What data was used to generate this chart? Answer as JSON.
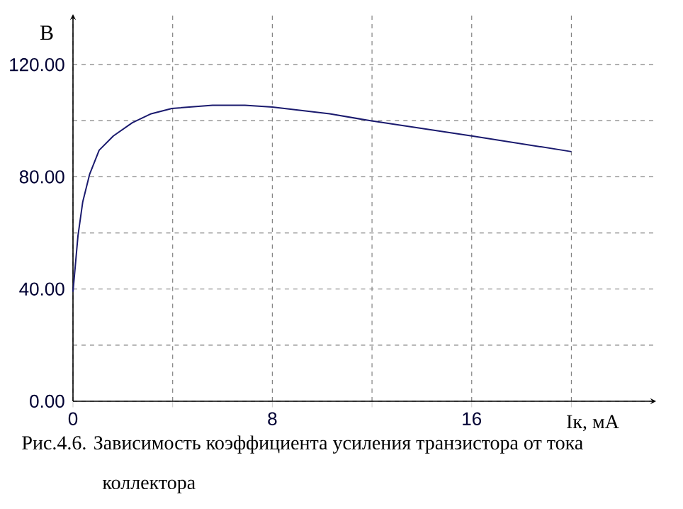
{
  "chart_data": {
    "type": "line",
    "title": "Рис.4.6.  Зависимость коэффициента усиления транзистора от тока коллектора",
    "xlabel": "Iк, мА",
    "ylabel": "В",
    "x": [
      0,
      0.2,
      0.39,
      0.67,
      1.05,
      1.62,
      2.38,
      3.14,
      3.97,
      5.6,
      6.9,
      8,
      10.3,
      11.94,
      16,
      20
    ],
    "series": [
      {
        "color": "#1a1a6e",
        "values": [
          39,
          59,
          71,
          81,
          89.5,
          94.6,
          99.3,
          102.5,
          104.4,
          105.5,
          105.5,
          104.9,
          102.5,
          100,
          94.6,
          89
        ]
      }
    ],
    "xlim": [
      0,
      23.4
    ],
    "ylim": [
      0,
      138
    ],
    "xticks": [
      0,
      {
        "value": 4,
        "label": null
      },
      8,
      {
        "value": 12,
        "label": null
      },
      16,
      {
        "value": 20,
        "label": null
      }
    ],
    "yticks": [
      {
        "value": 0,
        "label": "0.00"
      },
      {
        "value": 20,
        "label": null
      },
      {
        "value": 40,
        "label": "40.00"
      },
      {
        "value": 60,
        "label": null
      },
      {
        "value": 80,
        "label": "80.00"
      },
      {
        "value": 100,
        "label": null
      },
      {
        "value": 120,
        "label": "120.00"
      }
    ],
    "grid": true,
    "marker": "none",
    "line_style": "solid"
  }
}
